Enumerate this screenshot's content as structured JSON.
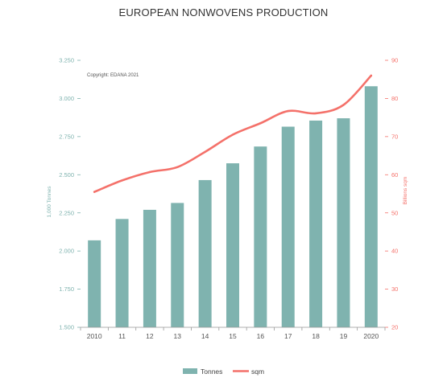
{
  "chart_data": {
    "type": "bar+line",
    "title": "EUROPEAN NONWOVENS PRODUCTION",
    "annotation": "Copyright: EDANA 2021",
    "categories": [
      "2010",
      "11",
      "12",
      "13",
      "14",
      "15",
      "16",
      "17",
      "18",
      "19",
      "2020"
    ],
    "series": [
      {
        "name": "Tonnes",
        "type": "bar",
        "axis": "left",
        "color": "#7fb3af",
        "values": [
          2070,
          2210,
          2270,
          2315,
          2465,
          2575,
          2685,
          2815,
          2855,
          2870,
          3080
        ]
      },
      {
        "name": "sqm",
        "type": "line",
        "axis": "right",
        "color": "#f4716a",
        "values": [
          55.5,
          58.5,
          60.7,
          62.0,
          66.0,
          70.5,
          73.5,
          76.7,
          76.1,
          78.3,
          86.0
        ]
      }
    ],
    "y_left": {
      "label": "1,000 Tonnes",
      "range": [
        1500,
        3250
      ],
      "ticks": [
        "1.500",
        "1.750",
        "2.000",
        "2.250",
        "2.500",
        "2.750",
        "3.000",
        "3.250"
      ],
      "tick_values": [
        1500,
        1750,
        2000,
        2250,
        2500,
        2750,
        3000,
        3250
      ]
    },
    "y_right": {
      "label": "Billions sqm",
      "range": [
        20,
        90
      ],
      "ticks": [
        "20",
        "30",
        "40",
        "50",
        "60",
        "70",
        "80",
        "90"
      ],
      "tick_values": [
        20,
        30,
        40,
        50,
        60,
        70,
        80,
        90
      ]
    },
    "grid": false,
    "legend": "bottom-center"
  }
}
